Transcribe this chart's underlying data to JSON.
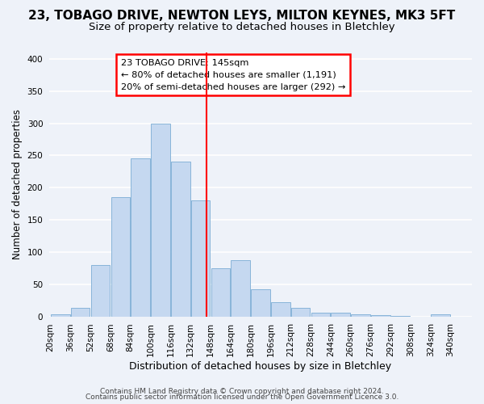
{
  "title": "23, TOBAGO DRIVE, NEWTON LEYS, MILTON KEYNES, MK3 5FT",
  "subtitle": "Size of property relative to detached houses in Bletchley",
  "xlabel": "Distribution of detached houses by size in Bletchley",
  "ylabel": "Number of detached properties",
  "bar_color": "#c5d8f0",
  "bar_edge_color": "#7badd4",
  "bin_edges": [
    20,
    36,
    52,
    68,
    84,
    100,
    116,
    132,
    148,
    164,
    180,
    196,
    212,
    228,
    244,
    260,
    276,
    292,
    308,
    324,
    340
  ],
  "bar_heights": [
    3,
    14,
    80,
    185,
    245,
    300,
    240,
    180,
    75,
    88,
    42,
    22,
    13,
    6,
    6,
    3,
    2,
    1,
    0,
    3
  ],
  "tick_labels": [
    "20sqm",
    "36sqm",
    "52sqm",
    "68sqm",
    "84sqm",
    "100sqm",
    "116sqm",
    "132sqm",
    "148sqm",
    "164sqm",
    "180sqm",
    "196sqm",
    "212sqm",
    "228sqm",
    "244sqm",
    "260sqm",
    "276sqm",
    "292sqm",
    "308sqm",
    "324sqm",
    "340sqm"
  ],
  "red_line_x": 145,
  "ylim": [
    0,
    410
  ],
  "yticks": [
    0,
    50,
    100,
    150,
    200,
    250,
    300,
    350,
    400
  ],
  "annotation_box_text": "23 TOBAGO DRIVE: 145sqm\n← 80% of detached houses are smaller (1,191)\n20% of semi-detached houses are larger (292) →",
  "footer_line1": "Contains HM Land Registry data © Crown copyright and database right 2024.",
  "footer_line2": "Contains public sector information licensed under the Open Government Licence 3.0.",
  "bg_color": "#eef2f9",
  "grid_color": "#ffffff",
  "title_fontsize": 11,
  "subtitle_fontsize": 9.5,
  "xlabel_fontsize": 9,
  "ylabel_fontsize": 8.5,
  "tick_fontsize": 7.5,
  "footer_fontsize": 6.5
}
